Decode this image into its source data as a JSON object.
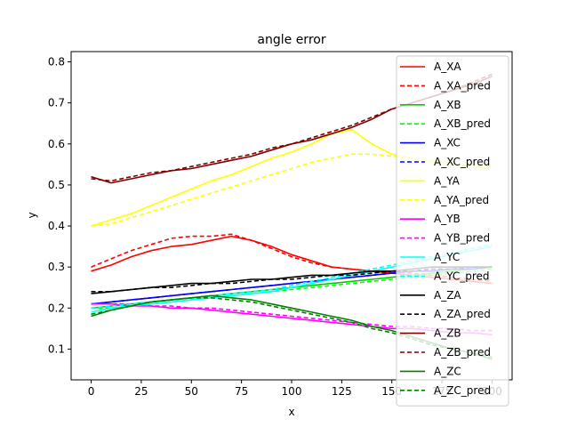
{
  "chart_data": {
    "type": "line",
    "title": "angle error",
    "xlabel": "x",
    "ylabel": "y",
    "xlim": [
      -10,
      210
    ],
    "ylim": [
      0.025,
      0.825
    ],
    "xticks": [
      0,
      25,
      50,
      75,
      100,
      125,
      150,
      175,
      200
    ],
    "yticks": [
      0.1,
      0.2,
      0.3,
      0.4,
      0.5,
      0.6,
      0.7,
      0.8
    ],
    "grid": false,
    "legend_position": "upper-right",
    "series": [
      {
        "name": "A_XA",
        "color": "#ff0000",
        "style": "solid",
        "x": [
          0,
          10,
          20,
          30,
          40,
          50,
          60,
          70,
          80,
          90,
          100,
          110,
          120,
          130,
          140,
          150,
          160,
          170,
          180,
          190,
          200
        ],
        "y": [
          0.29,
          0.305,
          0.325,
          0.34,
          0.35,
          0.355,
          0.365,
          0.375,
          0.365,
          0.35,
          0.33,
          0.315,
          0.3,
          0.295,
          0.29,
          0.285,
          0.28,
          0.275,
          0.27,
          0.265,
          0.26
        ]
      },
      {
        "name": "A_XA_pred",
        "color": "#ff0000",
        "style": "dashed",
        "x": [
          0,
          10,
          20,
          30,
          40,
          50,
          60,
          70,
          80,
          90,
          100,
          110,
          120,
          130,
          140,
          150,
          160,
          170,
          180,
          190,
          200
        ],
        "y": [
          0.3,
          0.32,
          0.34,
          0.355,
          0.37,
          0.375,
          0.375,
          0.38,
          0.365,
          0.345,
          0.325,
          0.31,
          0.3,
          0.295,
          0.29,
          0.29,
          0.285,
          0.28,
          0.275,
          0.27,
          0.265
        ]
      },
      {
        "name": "A_XB",
        "color": "#00cc00",
        "style": "solid",
        "x": [
          0,
          10,
          20,
          30,
          40,
          50,
          60,
          70,
          80,
          90,
          100,
          110,
          120,
          130,
          140,
          150,
          160,
          170,
          180,
          190,
          200
        ],
        "y": [
          0.2,
          0.205,
          0.21,
          0.215,
          0.22,
          0.225,
          0.23,
          0.235,
          0.24,
          0.245,
          0.25,
          0.255,
          0.26,
          0.265,
          0.27,
          0.275,
          0.28,
          0.285,
          0.29,
          0.295,
          0.3
        ]
      },
      {
        "name": "A_XB_pred",
        "color": "#00ff00",
        "style": "dashed",
        "x": [
          0,
          10,
          20,
          30,
          40,
          50,
          60,
          70,
          80,
          90,
          100,
          110,
          120,
          130,
          140,
          150,
          160,
          170,
          180,
          190,
          200
        ],
        "y": [
          0.2,
          0.2,
          0.205,
          0.21,
          0.215,
          0.22,
          0.225,
          0.23,
          0.235,
          0.24,
          0.245,
          0.25,
          0.255,
          0.26,
          0.265,
          0.27,
          0.275,
          0.28,
          0.285,
          0.29,
          0.295
        ]
      },
      {
        "name": "A_XC",
        "color": "#0000ff",
        "style": "solid",
        "x": [
          0,
          10,
          20,
          30,
          40,
          50,
          60,
          70,
          80,
          90,
          100,
          110,
          120,
          130,
          140,
          150,
          160,
          170,
          180,
          190,
          200
        ],
        "y": [
          0.21,
          0.215,
          0.22,
          0.225,
          0.23,
          0.235,
          0.24,
          0.245,
          0.25,
          0.255,
          0.26,
          0.265,
          0.27,
          0.275,
          0.28,
          0.285,
          0.29,
          0.29,
          0.295,
          0.295,
          0.3
        ]
      },
      {
        "name": "A_XC_pred",
        "color": "#0000ff",
        "style": "dashed",
        "x": [
          0,
          10,
          20,
          30,
          40,
          50,
          60,
          70,
          80,
          90,
          100,
          110,
          120,
          130,
          140,
          150,
          160,
          170,
          180,
          190,
          200
        ],
        "y": [
          0.21,
          0.215,
          0.22,
          0.225,
          0.23,
          0.235,
          0.24,
          0.245,
          0.25,
          0.255,
          0.26,
          0.265,
          0.27,
          0.275,
          0.28,
          0.285,
          0.29,
          0.295,
          0.295,
          0.3,
          0.3
        ]
      },
      {
        "name": "A_YA",
        "color": "#ffff00",
        "style": "solid",
        "x": [
          0,
          10,
          20,
          30,
          40,
          50,
          60,
          70,
          80,
          90,
          100,
          110,
          120,
          130,
          140,
          150,
          160,
          170,
          180,
          190,
          200
        ],
        "y": [
          0.4,
          0.415,
          0.43,
          0.45,
          0.47,
          0.49,
          0.51,
          0.525,
          0.545,
          0.565,
          0.58,
          0.6,
          0.625,
          0.635,
          0.6,
          0.575,
          0.565,
          0.555,
          0.55,
          0.545,
          0.54
        ]
      },
      {
        "name": "A_YA_pred",
        "color": "#ffff00",
        "style": "dashed",
        "x": [
          0,
          10,
          20,
          30,
          40,
          50,
          60,
          70,
          80,
          90,
          100,
          110,
          120,
          130,
          140,
          150,
          160,
          170,
          180,
          190,
          200
        ],
        "y": [
          0.4,
          0.405,
          0.42,
          0.435,
          0.45,
          0.465,
          0.48,
          0.495,
          0.51,
          0.525,
          0.54,
          0.555,
          0.565,
          0.575,
          0.575,
          0.57,
          0.565,
          0.56,
          0.555,
          0.55,
          0.545
        ]
      },
      {
        "name": "A_YB",
        "color": "#ff00ff",
        "style": "solid",
        "x": [
          0,
          10,
          20,
          30,
          40,
          50,
          60,
          70,
          80,
          90,
          100,
          110,
          120,
          130,
          140,
          150,
          160,
          170,
          180,
          190,
          200
        ],
        "y": [
          0.21,
          0.21,
          0.205,
          0.205,
          0.2,
          0.2,
          0.195,
          0.19,
          0.185,
          0.18,
          0.175,
          0.17,
          0.165,
          0.16,
          0.155,
          0.15,
          0.15,
          0.145,
          0.14,
          0.14,
          0.135
        ]
      },
      {
        "name": "A_YB_pred",
        "color": "#ff00ff",
        "style": "dashed",
        "x": [
          0,
          10,
          20,
          30,
          40,
          50,
          60,
          70,
          80,
          90,
          100,
          110,
          120,
          130,
          140,
          150,
          160,
          170,
          180,
          190,
          200
        ],
        "y": [
          0.21,
          0.21,
          0.21,
          0.205,
          0.205,
          0.2,
          0.2,
          0.195,
          0.19,
          0.185,
          0.18,
          0.175,
          0.17,
          0.165,
          0.16,
          0.155,
          0.155,
          0.15,
          0.15,
          0.145,
          0.145
        ]
      },
      {
        "name": "A_YC",
        "color": "#00ffff",
        "style": "solid",
        "x": [
          0,
          10,
          20,
          30,
          40,
          50,
          60,
          70,
          80,
          90,
          100,
          110,
          120,
          130,
          140,
          150,
          160,
          170,
          180,
          190,
          200
        ],
        "y": [
          0.19,
          0.2,
          0.205,
          0.21,
          0.215,
          0.22,
          0.225,
          0.23,
          0.235,
          0.24,
          0.25,
          0.26,
          0.27,
          0.28,
          0.29,
          0.3,
          0.31,
          0.32,
          0.33,
          0.34,
          0.35
        ]
      },
      {
        "name": "A_YC_pred",
        "color": "#00ffff",
        "style": "dashed",
        "x": [
          0,
          10,
          20,
          30,
          40,
          50,
          60,
          70,
          80,
          90,
          100,
          110,
          120,
          130,
          140,
          150,
          160,
          170,
          180,
          190,
          200
        ],
        "y": [
          0.2,
          0.205,
          0.21,
          0.215,
          0.22,
          0.225,
          0.23,
          0.235,
          0.24,
          0.245,
          0.255,
          0.265,
          0.275,
          0.285,
          0.295,
          0.305,
          0.315,
          0.325,
          0.335,
          0.345,
          0.355
        ]
      },
      {
        "name": "A_ZA",
        "color": "#000000",
        "style": "solid",
        "x": [
          0,
          10,
          20,
          30,
          40,
          50,
          60,
          70,
          80,
          90,
          100,
          110,
          120,
          130,
          140,
          150,
          160,
          170,
          180,
          190,
          200
        ],
        "y": [
          0.235,
          0.24,
          0.245,
          0.25,
          0.255,
          0.26,
          0.26,
          0.265,
          0.27,
          0.27,
          0.275,
          0.28,
          0.28,
          0.285,
          0.29,
          0.29,
          0.295,
          0.3,
          0.3,
          0.3,
          0.3
        ]
      },
      {
        "name": "A_ZA_pred",
        "color": "#000000",
        "style": "dashed",
        "x": [
          0,
          10,
          20,
          30,
          40,
          50,
          60,
          70,
          80,
          90,
          100,
          110,
          120,
          130,
          140,
          150,
          160,
          170,
          180,
          190,
          200
        ],
        "y": [
          0.24,
          0.24,
          0.245,
          0.25,
          0.25,
          0.255,
          0.26,
          0.26,
          0.265,
          0.27,
          0.27,
          0.275,
          0.28,
          0.28,
          0.285,
          0.29,
          0.29,
          0.295,
          0.295,
          0.3,
          0.3
        ]
      },
      {
        "name": "A_ZB",
        "color": "#800000",
        "style": "solid",
        "x": [
          0,
          10,
          20,
          30,
          40,
          50,
          60,
          70,
          80,
          90,
          100,
          110,
          120,
          130,
          140,
          150,
          160,
          170,
          180,
          190,
          200
        ],
        "y": [
          0.52,
          0.505,
          0.515,
          0.525,
          0.535,
          0.54,
          0.55,
          0.56,
          0.57,
          0.585,
          0.6,
          0.61,
          0.625,
          0.64,
          0.66,
          0.685,
          0.7,
          0.715,
          0.73,
          0.745,
          0.765
        ]
      },
      {
        "name": "A_ZB_pred",
        "color": "#800000",
        "style": "dashed",
        "x": [
          0,
          10,
          20,
          30,
          40,
          50,
          60,
          70,
          80,
          90,
          100,
          110,
          120,
          130,
          140,
          150,
          160,
          170,
          180,
          190,
          200
        ],
        "y": [
          0.515,
          0.51,
          0.52,
          0.53,
          0.535,
          0.545,
          0.555,
          0.565,
          0.575,
          0.59,
          0.6,
          0.615,
          0.63,
          0.645,
          0.665,
          0.685,
          0.7,
          0.715,
          0.73,
          0.75,
          0.77
        ]
      },
      {
        "name": "A_ZC",
        "color": "#008000",
        "style": "solid",
        "x": [
          0,
          10,
          20,
          30,
          40,
          50,
          60,
          70,
          80,
          90,
          100,
          110,
          120,
          130,
          140,
          150,
          160,
          170,
          180,
          190,
          200
        ],
        "y": [
          0.18,
          0.195,
          0.205,
          0.215,
          0.22,
          0.225,
          0.23,
          0.225,
          0.22,
          0.21,
          0.2,
          0.19,
          0.18,
          0.17,
          0.155,
          0.145,
          0.13,
          0.115,
          0.1,
          0.09,
          0.075
        ]
      },
      {
        "name": "A_ZC_pred",
        "color": "#008000",
        "style": "dashed",
        "x": [
          0,
          10,
          20,
          30,
          40,
          50,
          60,
          70,
          80,
          90,
          100,
          110,
          120,
          130,
          140,
          150,
          160,
          170,
          180,
          190,
          200
        ],
        "y": [
          0.185,
          0.195,
          0.205,
          0.215,
          0.22,
          0.225,
          0.225,
          0.22,
          0.215,
          0.205,
          0.195,
          0.185,
          0.175,
          0.165,
          0.15,
          0.14,
          0.125,
          0.11,
          0.1,
          0.09,
          0.08
        ]
      }
    ]
  }
}
